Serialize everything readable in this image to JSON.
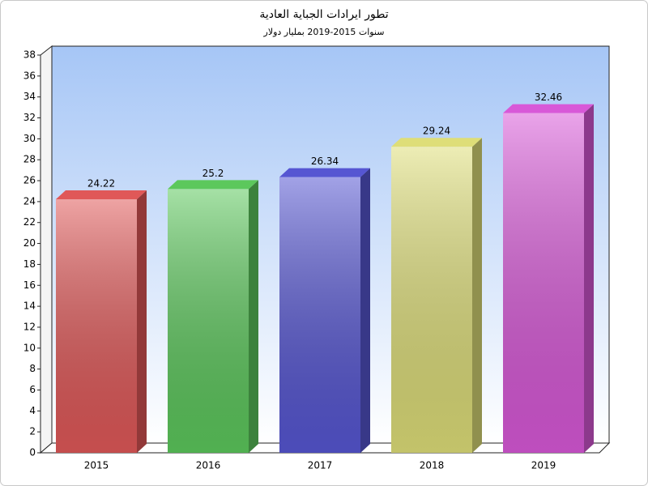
{
  "chart_data": {
    "type": "bar3d",
    "title": "تطور ايرادات الجباية العادية",
    "subtitle": "سنوات 2015-2019 بمليار دولار",
    "categories": [
      "2015",
      "2016",
      "2017",
      "2018",
      "2019"
    ],
    "values": [
      24.22,
      25.2,
      26.34,
      29.24,
      32.46
    ],
    "colors": [
      "#e05858",
      "#5cc85c",
      "#5656d2",
      "#dede78",
      "#d858d8"
    ],
    "ylim": [
      0,
      38
    ],
    "yticks": [
      0,
      2,
      4,
      6,
      8,
      10,
      12,
      14,
      16,
      18,
      20,
      22,
      24,
      26,
      28,
      30,
      32,
      34,
      36,
      38
    ],
    "grid": false
  }
}
